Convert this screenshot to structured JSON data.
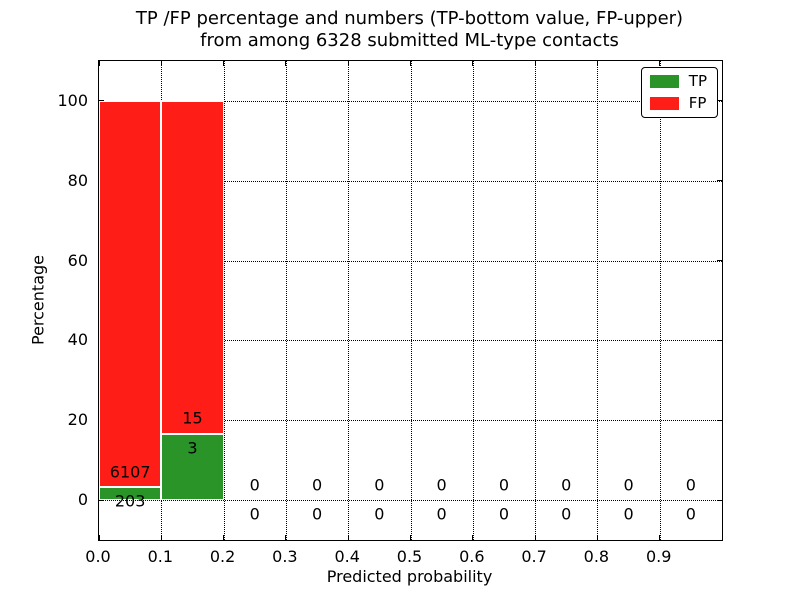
{
  "title": {
    "line1": "TP /FP percentage and numbers (TP-bottom value, FP-upper)",
    "line2": "from among 6328 submitted ML-type contacts"
  },
  "axes": {
    "xlabel": "Predicted probability",
    "ylabel": "Percentage"
  },
  "legend": {
    "position": "upper right",
    "entries": [
      {
        "label": "TP",
        "color": "#2a9428"
      },
      {
        "label": "FP",
        "color": "#fe1d17"
      }
    ]
  },
  "colors": {
    "tp": "#2a9428",
    "fp": "#fe1d17",
    "grid": "#000000",
    "background": "#ffffff"
  },
  "chart_data": {
    "type": "bar",
    "stacked": true,
    "title": "TP /FP percentage and numbers (TP-bottom value, FP-upper)\nfrom among 6328 submitted ML-type contacts",
    "xlabel": "Predicted probability",
    "ylabel": "Percentage",
    "total_contacts": 6328,
    "xlim": [
      0.0,
      1.0
    ],
    "ylim": [
      -10,
      110
    ],
    "xtick_labels": [
      "0.0",
      "0.1",
      "0.2",
      "0.3",
      "0.4",
      "0.5",
      "0.6",
      "0.7",
      "0.8",
      "0.9"
    ],
    "xtick_values": [
      0.0,
      0.1,
      0.2,
      0.3,
      0.4,
      0.5,
      0.6,
      0.7,
      0.8,
      0.9
    ],
    "ytick_labels": [
      "0",
      "20",
      "40",
      "60",
      "80",
      "100"
    ],
    "ytick_values": [
      0,
      20,
      40,
      60,
      80,
      100
    ],
    "grid": "dotted",
    "legend_position": "upper right",
    "series": [
      {
        "name": "TP",
        "color": "#2a9428"
      },
      {
        "name": "FP",
        "color": "#fe1d17"
      }
    ],
    "bins": [
      {
        "range": [
          0.0,
          0.1
        ],
        "tp_count": 203,
        "fp_count": 6107,
        "tp_pct": 3.22,
        "fp_pct": 96.78
      },
      {
        "range": [
          0.1,
          0.2
        ],
        "tp_count": 3,
        "fp_count": 15,
        "tp_pct": 16.67,
        "fp_pct": 83.33
      },
      {
        "range": [
          0.2,
          0.3
        ],
        "tp_count": 0,
        "fp_count": 0,
        "tp_pct": 0,
        "fp_pct": 0
      },
      {
        "range": [
          0.3,
          0.4
        ],
        "tp_count": 0,
        "fp_count": 0,
        "tp_pct": 0,
        "fp_pct": 0
      },
      {
        "range": [
          0.4,
          0.5
        ],
        "tp_count": 0,
        "fp_count": 0,
        "tp_pct": 0,
        "fp_pct": 0
      },
      {
        "range": [
          0.5,
          0.6
        ],
        "tp_count": 0,
        "fp_count": 0,
        "tp_pct": 0,
        "fp_pct": 0
      },
      {
        "range": [
          0.6,
          0.7
        ],
        "tp_count": 0,
        "fp_count": 0,
        "tp_pct": 0,
        "fp_pct": 0
      },
      {
        "range": [
          0.7,
          0.8
        ],
        "tp_count": 0,
        "fp_count": 0,
        "tp_pct": 0,
        "fp_pct": 0
      },
      {
        "range": [
          0.8,
          0.9
        ],
        "tp_count": 0,
        "fp_count": 0,
        "tp_pct": 0,
        "fp_pct": 0
      },
      {
        "range": [
          0.9,
          1.0
        ],
        "tp_count": 0,
        "fp_count": 0,
        "tp_pct": 0,
        "fp_pct": 0
      }
    ]
  }
}
